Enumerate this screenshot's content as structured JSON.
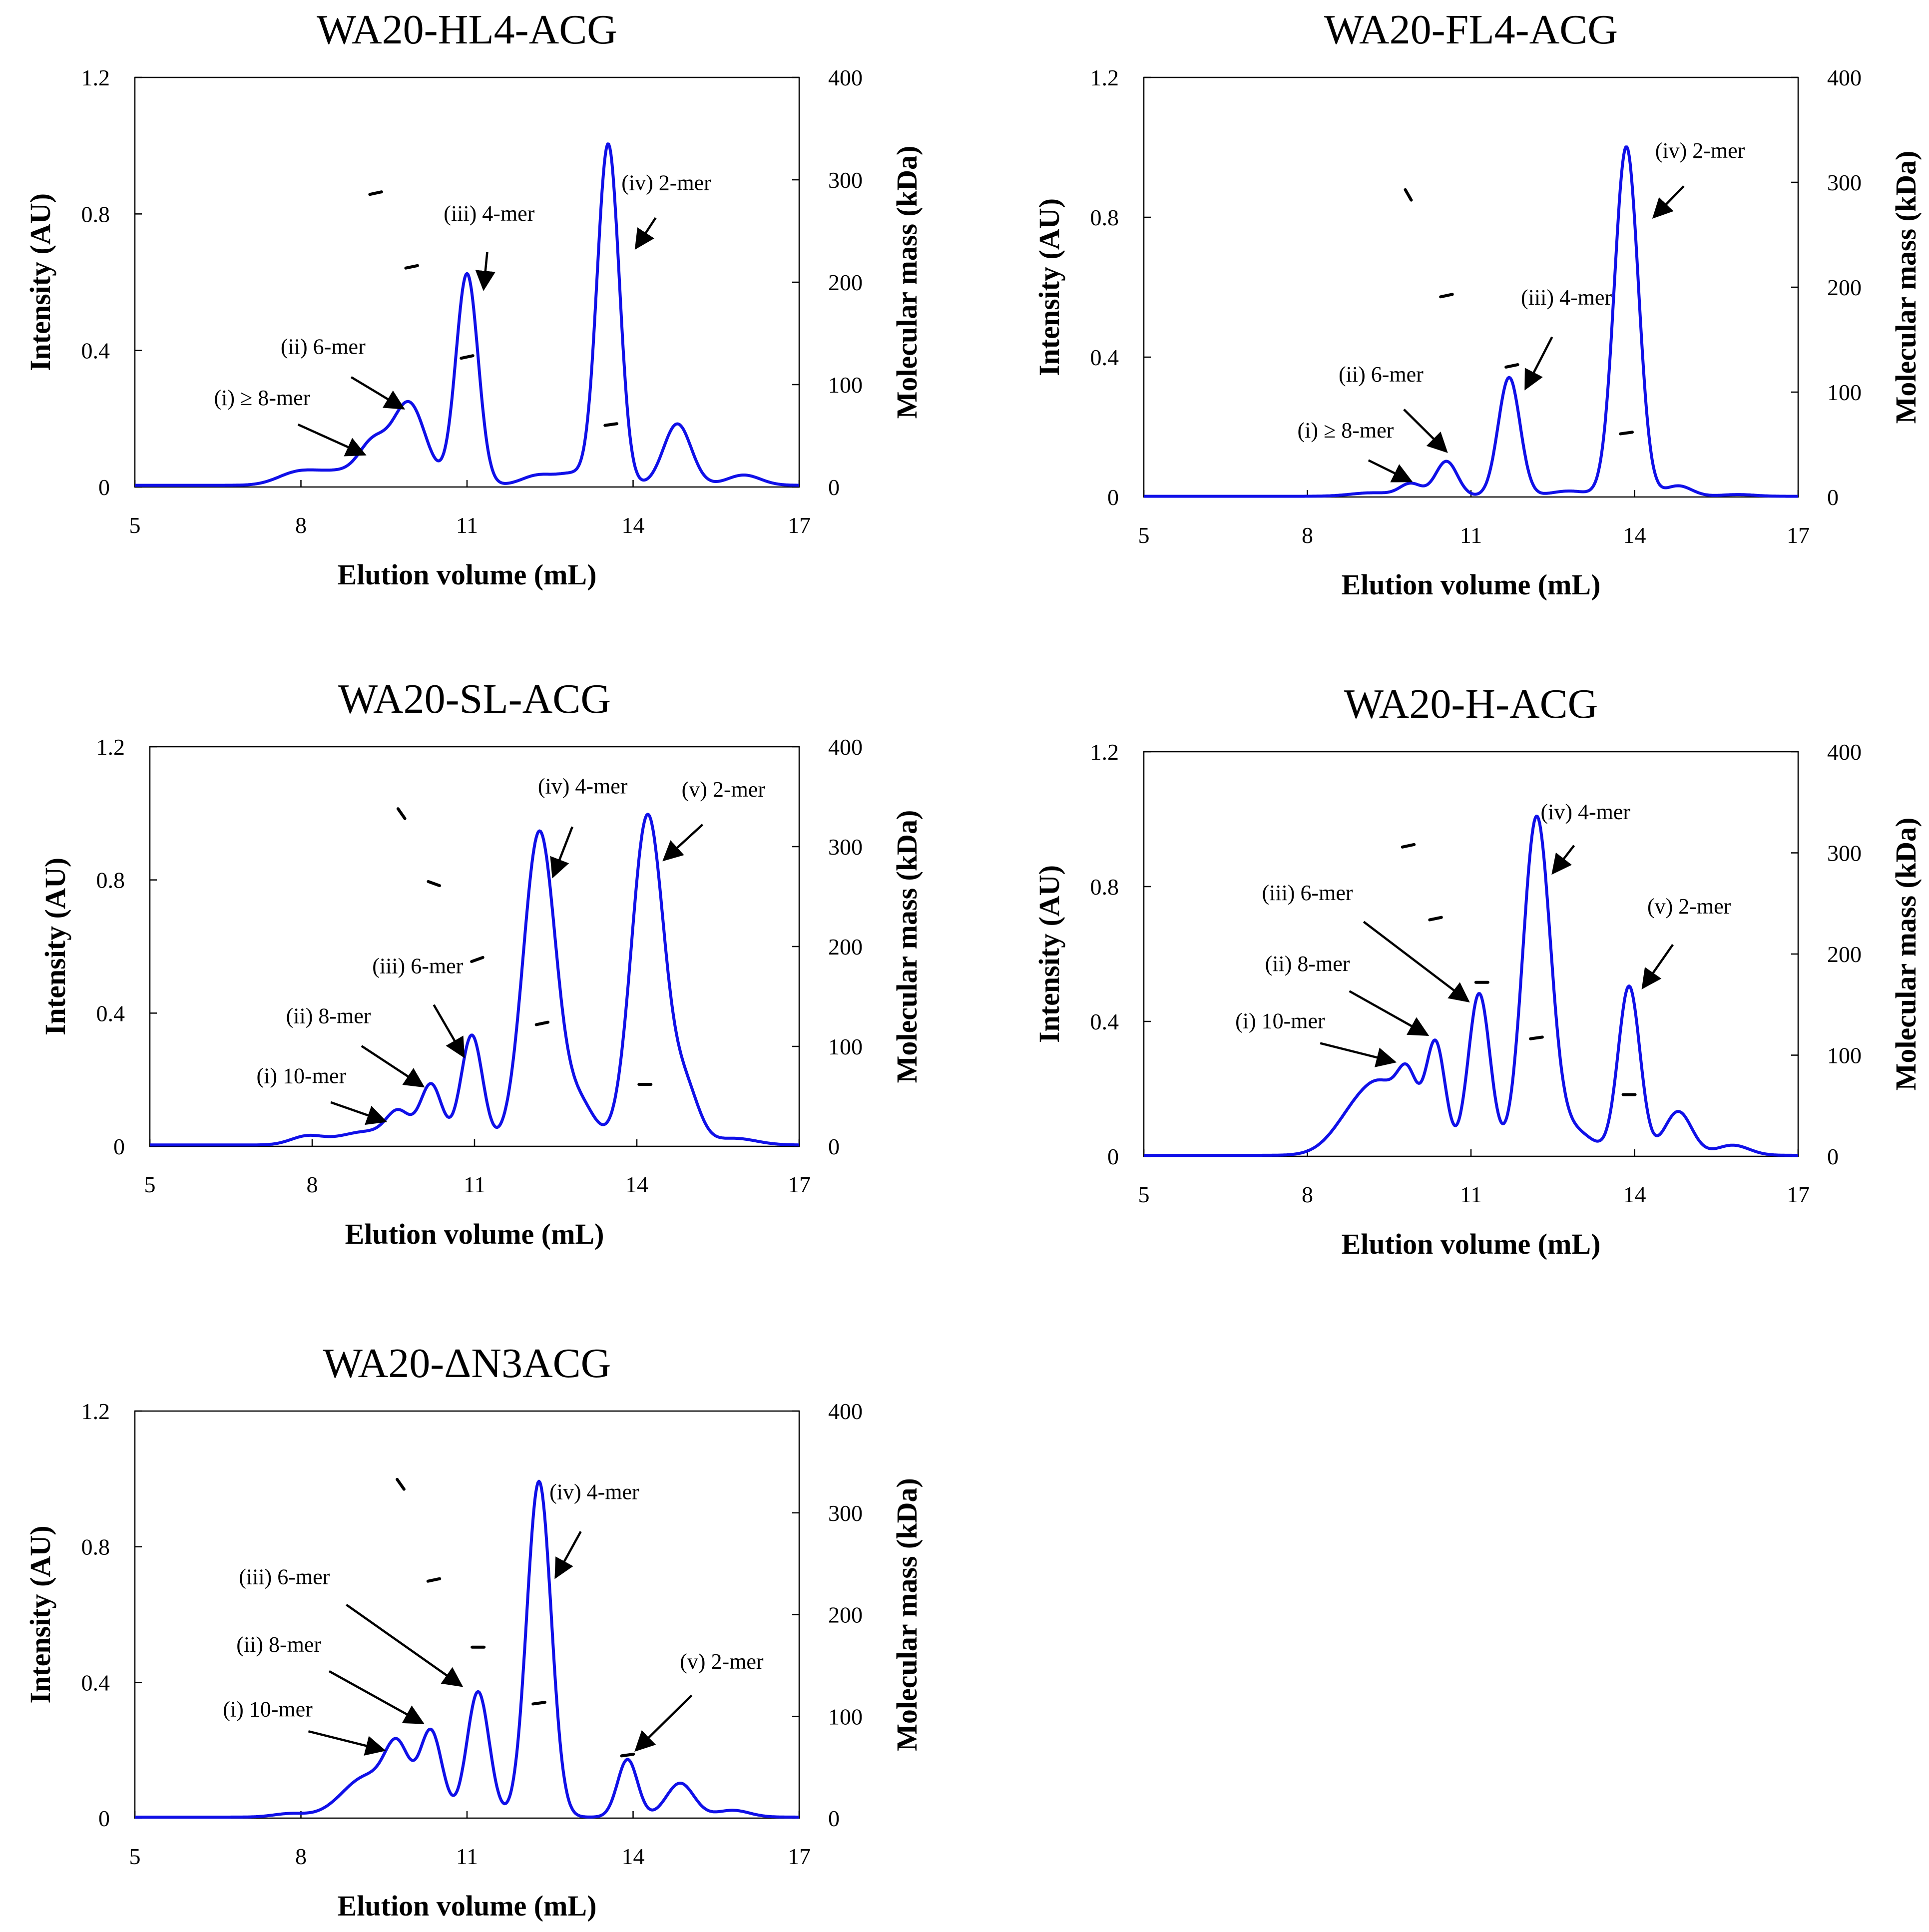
{
  "chart_data": [
    {
      "type": "line",
      "title": "WA20-HL4-ACG",
      "xlabel": "Elution volume (mL)",
      "ylabel": "Intensity (AU)",
      "y2label": "Molecular mass (kDa)",
      "xlim": [
        5,
        17
      ],
      "ylim": [
        0,
        1.2
      ],
      "y2lim": [
        0,
        400
      ],
      "xticks": [
        5,
        8,
        11,
        14,
        17
      ],
      "yticks": [
        0,
        0.4,
        0.8,
        1.2
      ],
      "ytick_labels": [
        "0",
        "0.4",
        "0.8",
        "1.2"
      ],
      "y2ticks": [
        0,
        100,
        200,
        300,
        400
      ],
      "baseline": 0.005,
      "shoulders": [
        {
          "c": 7.9,
          "w": 0.35,
          "h": 0.03
        },
        {
          "c": 8.7,
          "w": 0.5,
          "h": 0.04
        }
      ],
      "peaks": [
        {
          "c": 9.3,
          "w": 0.25,
          "h": 0.1
        },
        {
          "c": 9.95,
          "w": 0.3,
          "h": 0.24
        },
        {
          "c": 11.0,
          "w": 0.2,
          "h": 0.62
        },
        {
          "c": 12.3,
          "w": 0.3,
          "h": 0.03
        },
        {
          "c": 12.9,
          "w": 0.25,
          "h": 0.03
        },
        {
          "c": 13.55,
          "w": 0.2,
          "h": 1.0
        },
        {
          "c": 14.8,
          "w": 0.25,
          "h": 0.18
        },
        {
          "c": 16.0,
          "w": 0.3,
          "h": 0.03
        }
      ],
      "mass_points": [
        {
          "x": 9.35,
          "kda": 287,
          "slope": -12
        },
        {
          "x": 10.0,
          "kda": 215,
          "slope": -12
        },
        {
          "x": 11.0,
          "kda": 127,
          "slope": -12
        },
        {
          "x": 13.6,
          "kda": 61,
          "slope": -8
        }
      ],
      "annotations": [
        {
          "label": "(i) ≥ 8-mer",
          "tx": 7.3,
          "ty": 0.24,
          "ax": 9.15,
          "ay": 0.095,
          "anchor": "middle"
        },
        {
          "label": "(ii) 6-mer",
          "tx": 8.4,
          "ty": 0.39,
          "ax": 9.85,
          "ay": 0.23,
          "anchor": "middle"
        },
        {
          "label": "(iii) 4-mer",
          "tx": 11.4,
          "ty": 0.78,
          "ax": 11.3,
          "ay": 0.58,
          "anchor": "middle"
        },
        {
          "label": "(iv) 2-mer",
          "tx": 14.6,
          "ty": 0.87,
          "ax": 14.05,
          "ay": 0.7,
          "anchor": "middle"
        }
      ]
    },
    {
      "type": "line",
      "title": "WA20-FL4-ACG",
      "xlabel": "Elution volume (mL)",
      "ylabel": "Intensity (AU)",
      "y2label": "Molecular mass (kDa)",
      "xlim": [
        5,
        17
      ],
      "ylim": [
        0,
        1.2
      ],
      "y2lim": [
        0,
        400
      ],
      "xticks": [
        5,
        8,
        11,
        14,
        17
      ],
      "yticks": [
        0,
        0.4,
        0.8,
        1.2
      ],
      "ytick_labels": [
        "0",
        "0.4",
        "0.8",
        "1.2"
      ],
      "y2ticks": [
        0,
        100,
        200,
        300,
        400
      ],
      "baseline": 0.002,
      "shoulders": [
        {
          "c": 9.2,
          "w": 0.4,
          "h": 0.01
        }
      ],
      "peaks": [
        {
          "c": 9.9,
          "w": 0.2,
          "h": 0.035
        },
        {
          "c": 10.55,
          "w": 0.2,
          "h": 0.1
        },
        {
          "c": 11.7,
          "w": 0.2,
          "h": 0.34
        },
        {
          "c": 12.8,
          "w": 0.35,
          "h": 0.015
        },
        {
          "c": 13.85,
          "w": 0.22,
          "h": 1.0
        },
        {
          "c": 14.8,
          "w": 0.25,
          "h": 0.03
        },
        {
          "c": 15.9,
          "w": 0.3,
          "h": 0.005
        }
      ],
      "mass_points": [
        {
          "x": 9.85,
          "kda": 288,
          "slope": 60
        },
        {
          "x": 10.55,
          "kda": 192,
          "slope": -12
        },
        {
          "x": 11.75,
          "kda": 125,
          "slope": -12
        },
        {
          "x": 13.85,
          "kda": 61,
          "slope": -8
        }
      ],
      "annotations": [
        {
          "label": "(i) ≥ 8-mer",
          "tx": 8.7,
          "ty": 0.17,
          "ax": 9.9,
          "ay": 0.045,
          "anchor": "middle"
        },
        {
          "label": "(ii) 6-mer",
          "tx": 9.35,
          "ty": 0.33,
          "ax": 10.55,
          "ay": 0.13,
          "anchor": "middle"
        },
        {
          "label": "(iii) 4-mer",
          "tx": 12.75,
          "ty": 0.55,
          "ax": 12.0,
          "ay": 0.31,
          "anchor": "middle"
        },
        {
          "label": "(iv) 2-mer",
          "tx": 15.2,
          "ty": 0.97,
          "ax": 14.35,
          "ay": 0.8,
          "anchor": "middle"
        }
      ]
    },
    {
      "type": "line",
      "title": "WA20-SL-ACG",
      "xlabel": "Elution volume (mL)",
      "ylabel": "Intensity (AU)",
      "y2label": "Molecular mass (kDa)",
      "xlim": [
        5,
        17
      ],
      "ylim": [
        0,
        1.2
      ],
      "y2lim": [
        0,
        400
      ],
      "xticks": [
        5,
        8,
        11,
        14,
        17
      ],
      "yticks": [
        0,
        0.4,
        0.8,
        1.2
      ],
      "ytick_labels": [
        "0",
        "0.4",
        "0.8",
        "1.2"
      ],
      "y2ticks": [
        0,
        100,
        200,
        300,
        400
      ],
      "baseline": 0.004,
      "shoulders": [
        {
          "c": 7.9,
          "w": 0.3,
          "h": 0.025
        },
        {
          "c": 9.0,
          "w": 0.5,
          "h": 0.04
        }
      ],
      "peaks": [
        {
          "c": 9.6,
          "w": 0.22,
          "h": 0.085
        },
        {
          "c": 10.2,
          "w": 0.2,
          "h": 0.18
        },
        {
          "c": 10.95,
          "w": 0.2,
          "h": 0.33
        },
        {
          "c": 12.2,
          "w": 0.3,
          "h": 0.94
        },
        {
          "c": 12.95,
          "w": 0.28,
          "h": 0.12
        },
        {
          "c": 14.2,
          "w": 0.3,
          "h": 0.99
        },
        {
          "c": 14.9,
          "w": 0.25,
          "h": 0.16
        },
        {
          "c": 15.8,
          "w": 0.4,
          "h": 0.02
        }
      ],
      "mass_points": [
        {
          "x": 9.65,
          "kda": 333,
          "slope": 55
        },
        {
          "x": 10.25,
          "kda": 263,
          "slope": 20
        },
        {
          "x": 11.05,
          "kda": 187,
          "slope": -20
        },
        {
          "x": 12.25,
          "kda": 123,
          "slope": -12
        },
        {
          "x": 14.15,
          "kda": 62,
          "slope": 0
        }
      ],
      "annotations": [
        {
          "label": "(i) 10-mer",
          "tx": 7.8,
          "ty": 0.19,
          "ax": 9.35,
          "ay": 0.075,
          "anchor": "middle"
        },
        {
          "label": "(ii) 8-mer",
          "tx": 8.3,
          "ty": 0.37,
          "ax": 10.05,
          "ay": 0.18,
          "anchor": "middle"
        },
        {
          "label": "(iii) 6-mer",
          "tx": 9.95,
          "ty": 0.52,
          "ax": 10.8,
          "ay": 0.27,
          "anchor": "middle"
        },
        {
          "label": "(iv) 4-mer",
          "tx": 13.0,
          "ty": 1.06,
          "ax": 12.45,
          "ay": 0.81,
          "anchor": "middle"
        },
        {
          "label": "(v) 2-mer",
          "tx": 15.6,
          "ty": 1.05,
          "ax": 14.5,
          "ay": 0.86,
          "anchor": "middle"
        }
      ]
    },
    {
      "type": "line",
      "title": "WA20-H-ACG",
      "xlabel": "Elution volume (mL)",
      "ylabel": "Intensity (AU)",
      "y2label": "Molecular mass (kDa)",
      "xlim": [
        5,
        17
      ],
      "ylim": [
        0,
        1.2
      ],
      "y2lim": [
        0,
        400
      ],
      "xticks": [
        5,
        8,
        11,
        14,
        17
      ],
      "yticks": [
        0,
        0.4,
        0.8,
        1.2
      ],
      "ytick_labels": [
        "0",
        "0.4",
        "0.8",
        "1.2"
      ],
      "y2ticks": [
        0,
        100,
        200,
        300,
        400
      ],
      "baseline": 0.003,
      "shoulders": [
        {
          "c": 9.0,
          "w": 0.45,
          "h": 0.15
        },
        {
          "c": 9.5,
          "w": 0.35,
          "h": 0.12
        }
      ],
      "peaks": [
        {
          "c": 9.85,
          "w": 0.18,
          "h": 0.16
        },
        {
          "c": 10.35,
          "w": 0.18,
          "h": 0.33
        },
        {
          "c": 11.15,
          "w": 0.2,
          "h": 0.48
        },
        {
          "c": 12.2,
          "w": 0.25,
          "h": 0.98
        },
        {
          "c": 12.8,
          "w": 0.4,
          "h": 0.08
        },
        {
          "c": 13.9,
          "w": 0.2,
          "h": 0.5
        },
        {
          "c": 14.8,
          "w": 0.25,
          "h": 0.13
        },
        {
          "c": 15.8,
          "w": 0.3,
          "h": 0.03
        }
      ],
      "mass_points": [
        {
          "x": 9.85,
          "kda": 307,
          "slope": -12
        },
        {
          "x": 10.35,
          "kda": 235,
          "slope": -12
        },
        {
          "x": 11.2,
          "kda": 172,
          "slope": 0
        },
        {
          "x": 12.2,
          "kda": 117,
          "slope": -8
        },
        {
          "x": 13.9,
          "kda": 61,
          "slope": 0
        }
      ],
      "annotations": [
        {
          "label": "(i) 10-mer",
          "tx": 7.5,
          "ty": 0.38,
          "ax": 9.6,
          "ay": 0.28,
          "anchor": "middle"
        },
        {
          "label": "(ii) 8-mer",
          "tx": 8.0,
          "ty": 0.55,
          "ax": 10.2,
          "ay": 0.36,
          "anchor": "middle"
        },
        {
          "label": "(iii) 6-mer",
          "tx": 8.0,
          "ty": 0.76,
          "ax": 10.95,
          "ay": 0.46,
          "anchor": "middle"
        },
        {
          "label": "(iv) 4-mer",
          "tx": 13.1,
          "ty": 1.0,
          "ax": 12.5,
          "ay": 0.84,
          "anchor": "middle"
        },
        {
          "label": "(v) 2-mer",
          "tx": 15.0,
          "ty": 0.72,
          "ax": 14.15,
          "ay": 0.5,
          "anchor": "middle"
        }
      ]
    },
    {
      "type": "line",
      "title": "WA20-ΔN3ACG",
      "xlabel": "Elution volume (mL)",
      "ylabel": "Intensity (AU)",
      "y2label": "Molecular mass (kDa)",
      "xlim": [
        5,
        17
      ],
      "ylim": [
        0,
        1.2
      ],
      "y2lim": [
        0,
        400
      ],
      "xticks": [
        5,
        8,
        11,
        14,
        17
      ],
      "yticks": [
        0,
        0.4,
        0.8,
        1.2
      ],
      "ytick_labels": [
        "0",
        "0.4",
        "0.8",
        "1.2"
      ],
      "y2ticks": [
        0,
        100,
        200,
        300,
        400
      ],
      "baseline": 0.003,
      "shoulders": [
        {
          "c": 7.8,
          "w": 0.3,
          "h": 0.01
        },
        {
          "c": 9.2,
          "w": 0.45,
          "h": 0.12
        }
      ],
      "peaks": [
        {
          "c": 9.75,
          "w": 0.22,
          "h": 0.17
        },
        {
          "c": 10.35,
          "w": 0.2,
          "h": 0.25
        },
        {
          "c": 11.2,
          "w": 0.2,
          "h": 0.37
        },
        {
          "c": 12.3,
          "w": 0.22,
          "h": 0.99
        },
        {
          "c": 13.9,
          "w": 0.18,
          "h": 0.17
        },
        {
          "c": 14.85,
          "w": 0.25,
          "h": 0.1
        },
        {
          "c": 15.8,
          "w": 0.3,
          "h": 0.02
        }
      ],
      "mass_points": [
        {
          "x": 9.8,
          "kda": 328,
          "slope": 55
        },
        {
          "x": 10.4,
          "kda": 234,
          "slope": -12
        },
        {
          "x": 11.2,
          "kda": 168,
          "slope": 0
        },
        {
          "x": 12.3,
          "kda": 113,
          "slope": -8
        },
        {
          "x": 13.9,
          "kda": 62,
          "slope": -8
        }
      ],
      "annotations": [
        {
          "label": "(i) 10-mer",
          "tx": 7.4,
          "ty": 0.3,
          "ax": 9.5,
          "ay": 0.2,
          "anchor": "middle"
        },
        {
          "label": "(ii) 8-mer",
          "tx": 7.6,
          "ty": 0.49,
          "ax": 10.2,
          "ay": 0.28,
          "anchor": "middle"
        },
        {
          "label": "(iii) 6-mer",
          "tx": 7.7,
          "ty": 0.69,
          "ax": 10.9,
          "ay": 0.39,
          "anchor": "middle"
        },
        {
          "label": "(iv) 4-mer",
          "tx": 13.3,
          "ty": 0.94,
          "ax": 12.6,
          "ay": 0.71,
          "anchor": "middle"
        },
        {
          "label": "(v) 2-mer",
          "tx": 15.6,
          "ty": 0.44,
          "ax": 14.05,
          "ay": 0.2,
          "anchor": "middle"
        }
      ]
    }
  ]
}
